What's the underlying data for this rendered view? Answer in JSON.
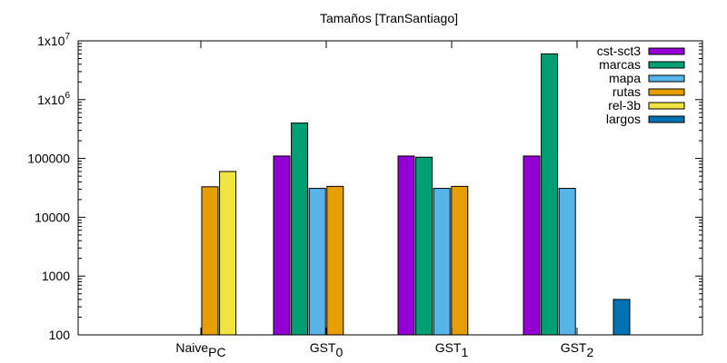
{
  "chart_data": {
    "type": "bar",
    "title": "Tamaños [TranSantiago]",
    "xlabel": "",
    "ylabel": "",
    "yscale": "log",
    "ylim": [
      100,
      10000000
    ],
    "y_ticks": [
      {
        "value": 100,
        "label": "100"
      },
      {
        "value": 1000,
        "label": "1000"
      },
      {
        "value": 10000,
        "label": "10000"
      },
      {
        "value": 100000,
        "label": "100000"
      },
      {
        "value": 1000000,
        "label": "1x10",
        "sup": "6"
      },
      {
        "value": 10000000,
        "label": "1x10",
        "sup": "7"
      }
    ],
    "categories": [
      {
        "base": "Naive",
        "sub": "PC"
      },
      {
        "base": "GST",
        "sub": "0"
      },
      {
        "base": "GST",
        "sub": "1"
      },
      {
        "base": "GST",
        "sub": "2"
      }
    ],
    "legend_position": "top-right",
    "grid": false,
    "series": [
      {
        "name": "cst-sct3",
        "color": "#9400d3",
        "values": [
          null,
          110000,
          110000,
          110000
        ]
      },
      {
        "name": "marcas",
        "color": "#009e73",
        "values": [
          null,
          400000,
          105000,
          6000000
        ]
      },
      {
        "name": "mapa",
        "color": "#56b4e9",
        "values": [
          null,
          31000,
          31000,
          31000
        ]
      },
      {
        "name": "rutas",
        "color": "#e69f00",
        "values": [
          33000,
          33500,
          33500,
          null
        ]
      },
      {
        "name": "rel-3b",
        "color": "#f0e442",
        "values": [
          60000,
          null,
          null,
          null
        ]
      },
      {
        "name": "largos",
        "color": "#0072b2",
        "values": [
          null,
          null,
          null,
          400
        ]
      }
    ]
  }
}
